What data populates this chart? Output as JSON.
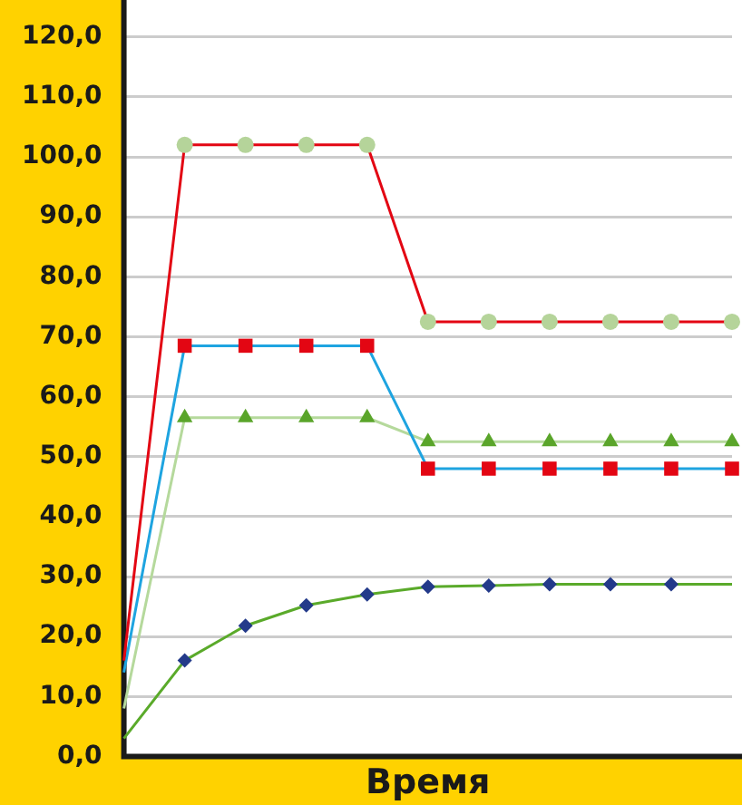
{
  "chart_data": {
    "type": "line",
    "xlabel": "Время",
    "categories": [
      null,
      null,
      null,
      null,
      null,
      null,
      null,
      null,
      null,
      null,
      null
    ],
    "ylim": [
      0,
      120
    ],
    "yticks": [
      {
        "value": 0,
        "label": "0,0"
      },
      {
        "value": 10,
        "label": "10,0"
      },
      {
        "value": 20,
        "label": "20,0"
      },
      {
        "value": 30,
        "label": "30,0"
      },
      {
        "value": 40,
        "label": "40,0"
      },
      {
        "value": 50,
        "label": "50,0"
      },
      {
        "value": 60,
        "label": "60,0"
      },
      {
        "value": 70,
        "label": "70,0"
      },
      {
        "value": 80,
        "label": "80,0"
      },
      {
        "value": 90,
        "label": "90,0"
      },
      {
        "value": 100,
        "label": "100,0"
      },
      {
        "value": 110,
        "label": "110,0"
      },
      {
        "value": 120,
        "label": "120,0"
      }
    ],
    "grid": "y",
    "legend": false,
    "tick_labels": "y",
    "line_style": "solid",
    "series": [
      {
        "color": "#e30613",
        "marker": "circle",
        "colors": [
          null,
          "#b5d49a",
          "#b5d49a",
          "#b5d49a",
          "#b5d49a",
          "#b5d49a",
          "#b5d49a",
          "#b5d49a",
          "#b5d49a",
          "#b5d49a",
          "#b5d49a"
        ],
        "values": [
          16,
          102,
          102,
          102,
          102,
          72.5,
          72.5,
          72.5,
          72.5,
          72.5,
          72.5
        ]
      },
      {
        "color": "#1ea4e0",
        "marker": "square",
        "colors": [
          null,
          "#e30613",
          "#e30613",
          "#e30613",
          "#e30613",
          "#e30613",
          "#e30613",
          "#e30613",
          "#e30613",
          "#e30613",
          "#e30613"
        ],
        "values": [
          14,
          68.5,
          68.5,
          68.5,
          68.5,
          48,
          48,
          48,
          48,
          48,
          48
        ]
      },
      {
        "color": "#b5d99c",
        "marker": "triangle",
        "colors": [
          null,
          "#5aa52a",
          "#5aa52a",
          "#5aa52a",
          "#5aa52a",
          "#5aa52a",
          "#5aa52a",
          "#5aa52a",
          "#5aa52a",
          "#5aa52a",
          "#5aa52a"
        ],
        "values": [
          8,
          56.5,
          56.5,
          56.5,
          56.5,
          52.5,
          52.5,
          52.5,
          52.5,
          52.5,
          52.5
        ]
      },
      {
        "color": "#5aaa2a",
        "marker": "diamond",
        "colors": [
          null,
          "#233a8a",
          "#233a8a",
          "#233a8a",
          "#233a8a",
          "#233a8a",
          "#233a8a",
          "#233a8a",
          "#233a8a",
          "#233a8a",
          null
        ],
        "values": [
          3,
          16,
          21.8,
          25.2,
          27,
          28.3,
          28.5,
          28.7,
          28.7,
          28.7,
          28.7
        ]
      }
    ]
  }
}
